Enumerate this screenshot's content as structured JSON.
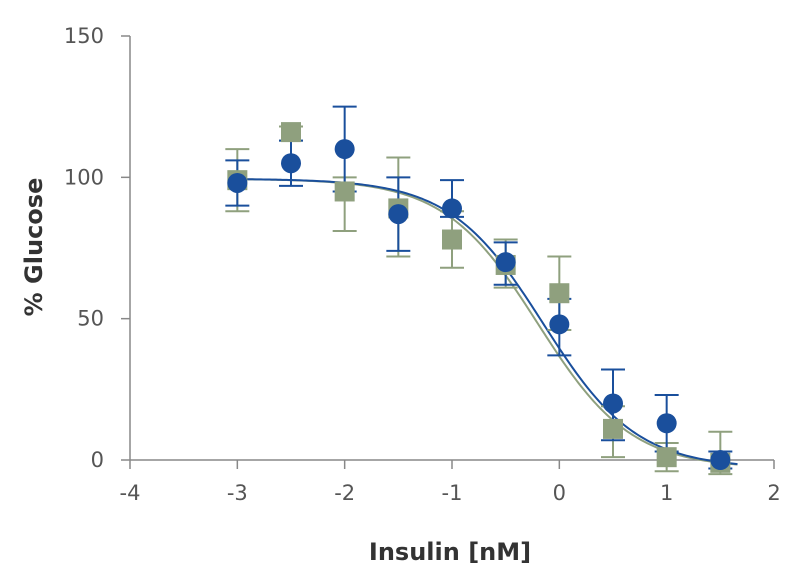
{
  "chart_data": {
    "type": "scatter",
    "xlabel": "Insulin [nM]",
    "ylabel": "% Glucose",
    "xlim": [
      -4,
      2
    ],
    "ylim": [
      0,
      150
    ],
    "x_ticks": [
      "-4",
      "-3",
      "-2",
      "-1",
      "0",
      "1",
      "2"
    ],
    "y_ticks": [
      "0",
      "50",
      "100",
      "150"
    ],
    "grid": false,
    "legend": "none",
    "series": [
      {
        "marker": "square",
        "color": "#8fa07e",
        "points": [
          {
            "x": -3.0,
            "y": 99,
            "err_low": 88,
            "err_high": 110
          },
          {
            "x": -2.5,
            "y": 116,
            "err_low": 113,
            "err_high": 118
          },
          {
            "x": -2.0,
            "y": 95,
            "err_low": 81,
            "err_high": 100
          },
          {
            "x": -1.5,
            "y": 89,
            "err_low": 72,
            "err_high": 107
          },
          {
            "x": -1.0,
            "y": 78,
            "err_low": 68,
            "err_high": 88
          },
          {
            "x": -0.5,
            "y": 69,
            "err_low": 61,
            "err_high": 78
          },
          {
            "x": 0.0,
            "y": 59,
            "err_low": 46,
            "err_high": 72
          },
          {
            "x": 0.5,
            "y": 11,
            "err_low": 1,
            "err_high": 19
          },
          {
            "x": 1.0,
            "y": 1,
            "err_low": -4,
            "err_high": 6
          },
          {
            "x": 1.5,
            "y": -1,
            "err_low": -5,
            "err_high": 10
          }
        ],
        "fit": {
          "top": 99.5,
          "bottom": -3,
          "ec50_log": -0.2,
          "hill": 1.0
        }
      },
      {
        "marker": "circle",
        "color": "#1a4f9c",
        "points": [
          {
            "x": -3.0,
            "y": 98,
            "err_low": 90,
            "err_high": 106
          },
          {
            "x": -2.5,
            "y": 105,
            "err_low": 97,
            "err_high": 113
          },
          {
            "x": -2.0,
            "y": 110,
            "err_low": 95,
            "err_high": 125
          },
          {
            "x": -1.5,
            "y": 87,
            "err_low": 74,
            "err_high": 100
          },
          {
            "x": -1.0,
            "y": 89,
            "err_low": 86,
            "err_high": 99
          },
          {
            "x": -0.5,
            "y": 70,
            "err_low": 62,
            "err_high": 77
          },
          {
            "x": 0.0,
            "y": 48,
            "err_low": 37,
            "err_high": 57
          },
          {
            "x": 0.5,
            "y": 20,
            "err_low": 7,
            "err_high": 32
          },
          {
            "x": 1.0,
            "y": 13,
            "err_low": 3,
            "err_high": 23
          },
          {
            "x": 1.5,
            "y": 0,
            "err_low": -3,
            "err_high": 3
          }
        ],
        "fit": {
          "top": 99.5,
          "bottom": -3,
          "ec50_log": -0.15,
          "hill": 1.0
        }
      }
    ]
  }
}
